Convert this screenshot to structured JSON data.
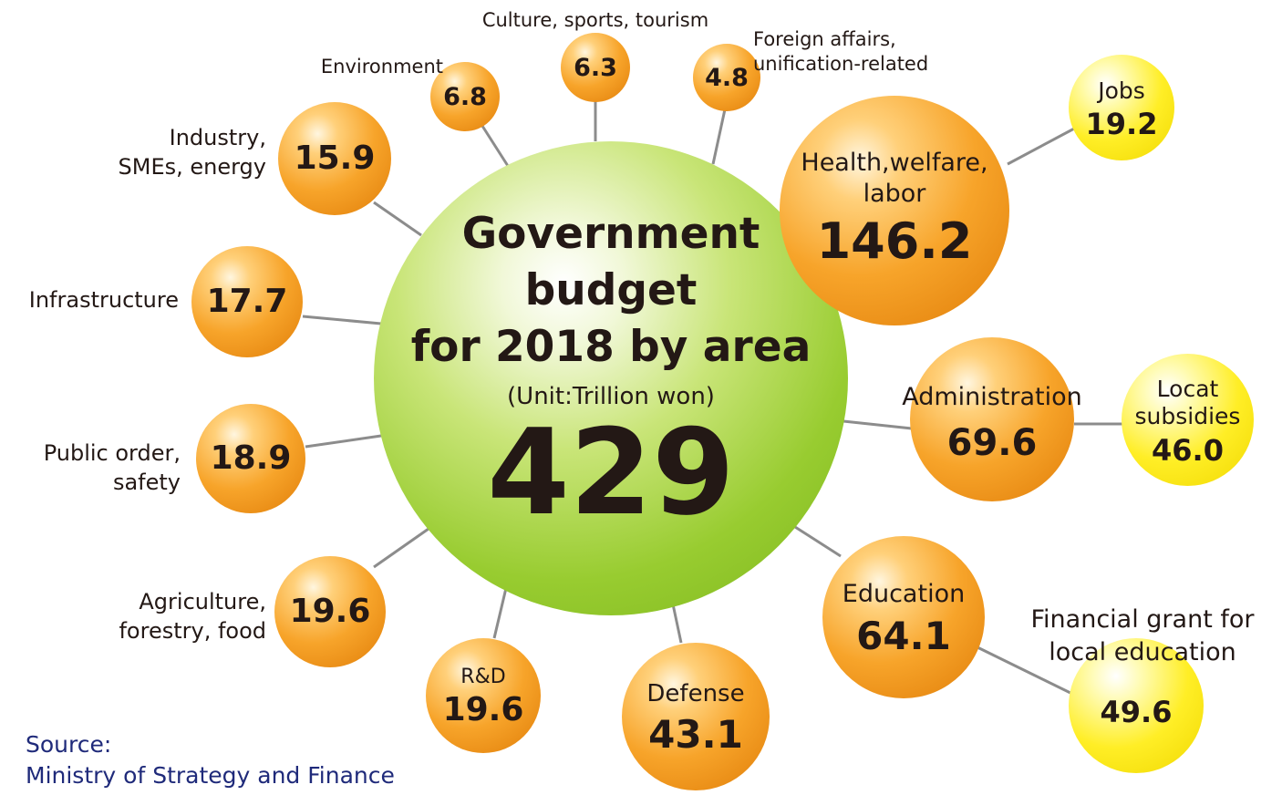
{
  "center": {
    "title_lines": [
      "Government",
      "budget",
      "for 2018 by area"
    ],
    "unit": "(Unit:Trillion won)",
    "total": "429"
  },
  "areas": [
    {
      "id": "health",
      "label_lines": [
        "Health,welfare,",
        "labor"
      ],
      "value": "146.2"
    },
    {
      "id": "jobs",
      "label_lines": [
        "Jobs"
      ],
      "value": "19.2"
    },
    {
      "id": "administration",
      "label_lines": [
        "Administration"
      ],
      "value": "69.6"
    },
    {
      "id": "local-subsidies",
      "label_lines": [
        "Locat",
        "subsidies"
      ],
      "value": "46.0"
    },
    {
      "id": "education",
      "label_lines": [
        "Education"
      ],
      "value": "64.1"
    },
    {
      "id": "local-education-grant",
      "label_lines": [
        "Financial grant for",
        "local education"
      ],
      "value": "49.6"
    },
    {
      "id": "defense",
      "label_lines": [
        "Defense"
      ],
      "value": "43.1"
    },
    {
      "id": "rnd",
      "label_lines": [
        "R&D"
      ],
      "value": "19.6"
    },
    {
      "id": "agriculture",
      "label_lines": [
        "Agriculture,",
        "forestry, food"
      ],
      "value": "19.6"
    },
    {
      "id": "public-order",
      "label_lines": [
        "Public order,",
        "safety"
      ],
      "value": "18.9"
    },
    {
      "id": "infrastructure",
      "label_lines": [
        "Infrastructure"
      ],
      "value": "17.7"
    },
    {
      "id": "industry",
      "label_lines": [
        "Industry,",
        "SMEs, energy"
      ],
      "value": "15.9"
    },
    {
      "id": "environment",
      "label_lines": [
        "Environment"
      ],
      "value": "6.8"
    },
    {
      "id": "culture",
      "label_lines": [
        "Culture, sports, tourism"
      ],
      "value": "6.3"
    },
    {
      "id": "foreign-affairs",
      "label_lines": [
        "Foreign affairs,",
        "unification-related"
      ],
      "value": "4.8"
    }
  ],
  "source": {
    "lines": [
      "Source:",
      "Ministry of Strategy and Finance"
    ]
  },
  "colors": {
    "center": "#8dc21f",
    "main_bubble": "#f39800",
    "sub_bubble": "#fff100",
    "text": "#231815",
    "source_text": "#1f2a7a",
    "connector": "#8c8c8c"
  }
}
